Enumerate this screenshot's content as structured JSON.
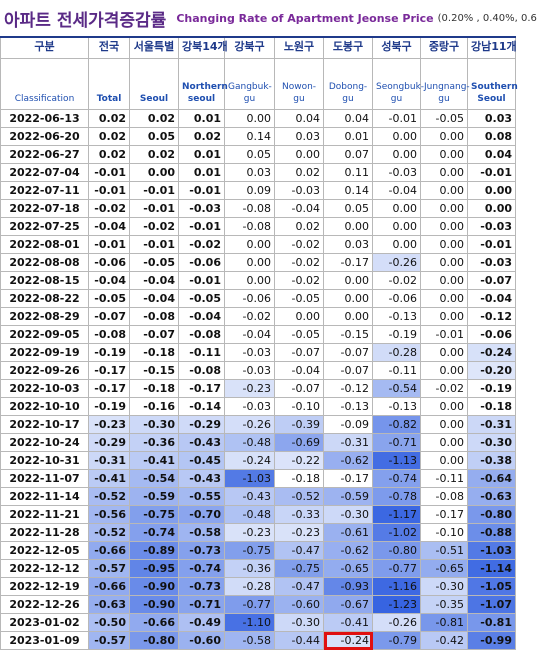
{
  "header": {
    "title": "아파트 전세가격증감률",
    "subtitle": "Changing Rate of Apartment Jeonse Price",
    "legend": "(0.20% , 0.40%, 0.6"
  },
  "table": {
    "columns": [
      {
        "ko": "구분",
        "en": "Classification"
      },
      {
        "ko": "전국",
        "en": "Total"
      },
      {
        "ko": "서울특별",
        "en": "Seoul"
      },
      {
        "ko": "강북14개",
        "en": "Northern seoul"
      },
      {
        "ko": "강북구",
        "en": "Gangbuk-gu"
      },
      {
        "ko": "노원구",
        "en": "Nowon-gu"
      },
      {
        "ko": "도봉구",
        "en": "Dobong-gu"
      },
      {
        "ko": "성북구",
        "en": "Seongbuk-gu"
      },
      {
        "ko": "중랑구",
        "en": "Jungnang-gu"
      },
      {
        "ko": "강남11개",
        "en": "Southern Seoul"
      }
    ],
    "rows": [
      [
        "2022-06-13",
        "0.02",
        "0.02",
        "0.01",
        "0.00",
        "0.04",
        "0.04",
        "-0.01",
        "-0.05",
        "0.03"
      ],
      [
        "2022-06-20",
        "0.02",
        "0.05",
        "0.02",
        "0.14",
        "0.03",
        "0.01",
        "0.00",
        "0.00",
        "0.08"
      ],
      [
        "2022-06-27",
        "0.02",
        "0.02",
        "0.01",
        "0.05",
        "0.00",
        "0.07",
        "0.00",
        "0.00",
        "0.04"
      ],
      [
        "2022-07-04",
        "-0.01",
        "0.00",
        "0.01",
        "0.03",
        "0.02",
        "0.11",
        "-0.03",
        "0.00",
        "-0.01"
      ],
      [
        "2022-07-11",
        "-0.01",
        "-0.01",
        "-0.01",
        "0.09",
        "-0.03",
        "0.14",
        "-0.04",
        "0.00",
        "0.00"
      ],
      [
        "2022-07-18",
        "-0.02",
        "-0.01",
        "-0.03",
        "-0.08",
        "-0.04",
        "0.05",
        "0.00",
        "0.00",
        "0.00"
      ],
      [
        "2022-07-25",
        "-0.04",
        "-0.02",
        "-0.01",
        "-0.08",
        "0.02",
        "0.00",
        "0.00",
        "0.00",
        "-0.03"
      ],
      [
        "2022-08-01",
        "-0.01",
        "-0.01",
        "-0.02",
        "0.00",
        "-0.02",
        "0.03",
        "0.00",
        "0.00",
        "-0.01"
      ],
      [
        "2022-08-08",
        "-0.06",
        "-0.05",
        "-0.06",
        "0.00",
        "-0.02",
        "-0.17",
        "-0.26",
        "0.00",
        "-0.03"
      ],
      [
        "2022-08-15",
        "-0.04",
        "-0.04",
        "-0.01",
        "0.00",
        "-0.02",
        "0.00",
        "-0.02",
        "0.00",
        "-0.07"
      ],
      [
        "2022-08-22",
        "-0.05",
        "-0.04",
        "-0.05",
        "-0.06",
        "-0.05",
        "0.00",
        "-0.06",
        "0.00",
        "-0.04"
      ],
      [
        "2022-08-29",
        "-0.07",
        "-0.08",
        "-0.04",
        "-0.02",
        "0.00",
        "0.00",
        "-0.13",
        "0.00",
        "-0.12"
      ],
      [
        "2022-09-05",
        "-0.08",
        "-0.07",
        "-0.08",
        "-0.04",
        "-0.05",
        "-0.15",
        "-0.19",
        "-0.01",
        "-0.06"
      ],
      [
        "2022-09-19",
        "-0.19",
        "-0.18",
        "-0.11",
        "-0.03",
        "-0.07",
        "-0.07",
        "-0.28",
        "0.00",
        "-0.24"
      ],
      [
        "2022-09-26",
        "-0.17",
        "-0.15",
        "-0.08",
        "-0.03",
        "-0.04",
        "-0.07",
        "-0.11",
        "0.00",
        "-0.20"
      ],
      [
        "2022-10-03",
        "-0.17",
        "-0.18",
        "-0.17",
        "-0.23",
        "-0.07",
        "-0.12",
        "-0.54",
        "-0.02",
        "-0.19"
      ],
      [
        "2022-10-10",
        "-0.19",
        "-0.16",
        "-0.14",
        "-0.03",
        "-0.10",
        "-0.13",
        "-0.13",
        "0.00",
        "-0.18"
      ],
      [
        "2022-10-17",
        "-0.23",
        "-0.30",
        "-0.29",
        "-0.26",
        "-0.39",
        "-0.09",
        "-0.82",
        "0.00",
        "-0.31"
      ],
      [
        "2022-10-24",
        "-0.29",
        "-0.36",
        "-0.43",
        "-0.48",
        "-0.69",
        "-0.31",
        "-0.71",
        "0.00",
        "-0.30"
      ],
      [
        "2022-10-31",
        "-0.31",
        "-0.41",
        "-0.45",
        "-0.24",
        "-0.22",
        "-0.62",
        "-1.13",
        "0.00",
        "-0.38"
      ],
      [
        "2022-11-07",
        "-0.41",
        "-0.54",
        "-0.43",
        "-1.03",
        "-0.18",
        "-0.17",
        "-0.74",
        "-0.11",
        "-0.64"
      ],
      [
        "2022-11-14",
        "-0.52",
        "-0.59",
        "-0.55",
        "-0.43",
        "-0.52",
        "-0.59",
        "-0.78",
        "-0.08",
        "-0.63"
      ],
      [
        "2022-11-21",
        "-0.56",
        "-0.75",
        "-0.70",
        "-0.48",
        "-0.33",
        "-0.30",
        "-1.17",
        "-0.17",
        "-0.80"
      ],
      [
        "2022-11-28",
        "-0.52",
        "-0.74",
        "-0.58",
        "-0.23",
        "-0.23",
        "-0.61",
        "-1.02",
        "-0.10",
        "-0.88"
      ],
      [
        "2022-12-05",
        "-0.66",
        "-0.89",
        "-0.73",
        "-0.75",
        "-0.47",
        "-0.62",
        "-0.80",
        "-0.51",
        "-1.03"
      ],
      [
        "2022-12-12",
        "-0.57",
        "-0.95",
        "-0.74",
        "-0.36",
        "-0.75",
        "-0.65",
        "-0.77",
        "-0.65",
        "-1.14"
      ],
      [
        "2022-12-19",
        "-0.66",
        "-0.90",
        "-0.73",
        "-0.28",
        "-0.47",
        "-0.93",
        "-1.16",
        "-0.30",
        "-1.05"
      ],
      [
        "2022-12-26",
        "-0.63",
        "-0.90",
        "-0.71",
        "-0.77",
        "-0.60",
        "-0.67",
        "-1.23",
        "-0.35",
        "-1.07"
      ],
      [
        "2023-01-02",
        "-0.50",
        "-0.66",
        "-0.49",
        "-1.10",
        "-0.30",
        "-0.41",
        "-0.26",
        "-0.81",
        "-0.81"
      ],
      [
        "2023-01-09",
        "-0.57",
        "-0.80",
        "-0.60",
        "-0.58",
        "-0.44",
        "-0.24",
        "-0.79",
        "-0.42",
        "-0.99"
      ]
    ]
  }
}
